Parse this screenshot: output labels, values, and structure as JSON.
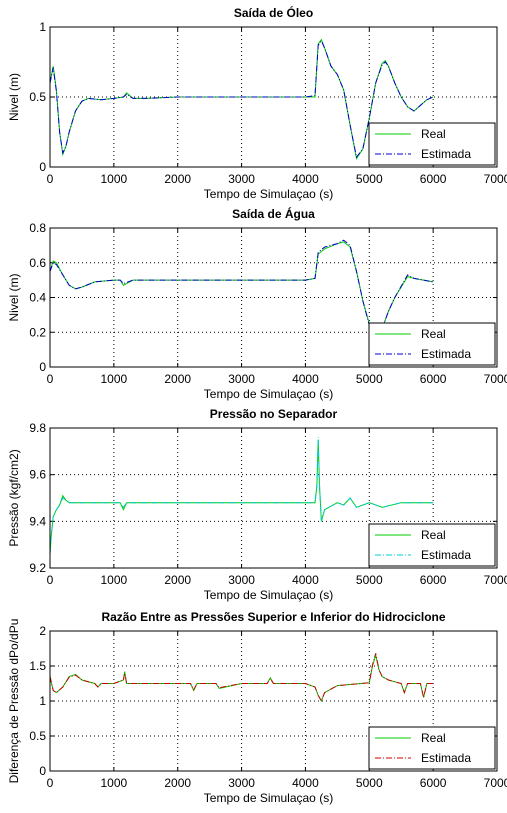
{
  "chart_data": [
    {
      "type": "line",
      "title": "Saída de Óleo",
      "xlabel": "Tempo de Simulaçao (s)",
      "ylabel": "Nivel (m)",
      "xlim": [
        0,
        7000
      ],
      "ylim": [
        0,
        1
      ],
      "xticks": [
        "0",
        "1000",
        "2000",
        "3000",
        "4000",
        "5000",
        "6000",
        "7000"
      ],
      "yticks": [
        "0",
        "0.5",
        "1"
      ],
      "ytick_values": [
        0,
        0.5,
        1
      ],
      "grid": "dotted",
      "legend_position": "bottom-right",
      "series": [
        {
          "name": "Real",
          "color": "#00cc00",
          "style": "solid",
          "x": [
            0,
            50,
            100,
            150,
            200,
            250,
            300,
            400,
            500,
            600,
            800,
            1000,
            1150,
            1200,
            1300,
            1500,
            2000,
            2500,
            3000,
            3500,
            4000,
            4150,
            4200,
            4250,
            4300,
            4400,
            4500,
            4600,
            4700,
            4800,
            4900,
            5000,
            5100,
            5200,
            5250,
            5300,
            5400,
            5500,
            5600,
            5700,
            5800,
            5900,
            6000
          ],
          "values": [
            0.6,
            0.72,
            0.55,
            0.25,
            0.09,
            0.15,
            0.25,
            0.4,
            0.47,
            0.49,
            0.48,
            0.49,
            0.5,
            0.53,
            0.49,
            0.49,
            0.5,
            0.5,
            0.5,
            0.5,
            0.5,
            0.5,
            0.88,
            0.91,
            0.85,
            0.72,
            0.66,
            0.55,
            0.3,
            0.06,
            0.13,
            0.35,
            0.6,
            0.74,
            0.76,
            0.72,
            0.6,
            0.5,
            0.43,
            0.4,
            0.44,
            0.48,
            0.5
          ]
        },
        {
          "name": "Estimada",
          "color": "#0000cc",
          "style": "dashdot",
          "x": [
            0,
            50,
            100,
            150,
            200,
            250,
            300,
            400,
            500,
            600,
            800,
            1000,
            1150,
            1200,
            1300,
            1500,
            2000,
            2500,
            3000,
            3500,
            4000,
            4150,
            4200,
            4250,
            4300,
            4400,
            4500,
            4600,
            4700,
            4800,
            4900,
            5000,
            5100,
            5200,
            5250,
            5300,
            5400,
            5500,
            5600,
            5700,
            5800,
            5900,
            6000
          ],
          "values": [
            0.6,
            0.71,
            0.54,
            0.25,
            0.1,
            0.15,
            0.25,
            0.4,
            0.47,
            0.49,
            0.48,
            0.49,
            0.5,
            0.52,
            0.49,
            0.49,
            0.5,
            0.5,
            0.5,
            0.5,
            0.5,
            0.51,
            0.87,
            0.9,
            0.85,
            0.72,
            0.66,
            0.55,
            0.3,
            0.07,
            0.13,
            0.35,
            0.6,
            0.73,
            0.75,
            0.72,
            0.6,
            0.5,
            0.43,
            0.4,
            0.44,
            0.48,
            0.5
          ]
        }
      ]
    },
    {
      "type": "line",
      "title": "Saída de Água",
      "xlabel": "Tempo de Simulaçao (s)",
      "ylabel": "Nivel (m)",
      "xlim": [
        0,
        7000
      ],
      "ylim": [
        0,
        0.8
      ],
      "xticks": [
        "0",
        "1000",
        "2000",
        "3000",
        "4000",
        "5000",
        "6000",
        "7000"
      ],
      "yticks": [
        "0",
        "0.2",
        "0.4",
        "0.6",
        "0.8"
      ],
      "ytick_values": [
        0,
        0.2,
        0.4,
        0.6,
        0.8
      ],
      "grid": "dotted",
      "legend_position": "bottom-right",
      "series": [
        {
          "name": "Real",
          "color": "#00cc00",
          "style": "solid",
          "x": [
            0,
            50,
            100,
            200,
            300,
            400,
            500,
            700,
            1000,
            1100,
            1150,
            1300,
            1500,
            2000,
            3000,
            3500,
            4000,
            4150,
            4200,
            4300,
            4500,
            4600,
            4700,
            4800,
            4900,
            5000,
            5100,
            5200,
            5300,
            5400,
            5600,
            5700,
            6000
          ],
          "values": [
            0.55,
            0.61,
            0.6,
            0.53,
            0.47,
            0.45,
            0.46,
            0.49,
            0.5,
            0.5,
            0.47,
            0.5,
            0.5,
            0.5,
            0.5,
            0.5,
            0.5,
            0.51,
            0.65,
            0.68,
            0.71,
            0.72,
            0.69,
            0.55,
            0.38,
            0.25,
            0.13,
            0.22,
            0.32,
            0.4,
            0.52,
            0.51,
            0.49
          ]
        },
        {
          "name": "Estimada",
          "color": "#0000cc",
          "style": "dashdot",
          "x": [
            0,
            50,
            100,
            200,
            300,
            400,
            500,
            700,
            1000,
            1100,
            1150,
            1300,
            1500,
            2000,
            3000,
            3500,
            4000,
            4150,
            4200,
            4300,
            4500,
            4600,
            4700,
            4800,
            4900,
            5000,
            5100,
            5200,
            5300,
            5400,
            5600,
            5700,
            6000
          ],
          "values": [
            0.55,
            0.6,
            0.59,
            0.53,
            0.47,
            0.45,
            0.46,
            0.49,
            0.5,
            0.5,
            0.48,
            0.5,
            0.5,
            0.5,
            0.5,
            0.5,
            0.5,
            0.51,
            0.66,
            0.69,
            0.71,
            0.73,
            0.7,
            0.55,
            0.38,
            0.24,
            0.12,
            0.22,
            0.32,
            0.4,
            0.53,
            0.51,
            0.49
          ]
        }
      ]
    },
    {
      "type": "line",
      "title": "Pressão no Separador",
      "xlabel": "Tempo de Simulaçao (s)",
      "ylabel": "Pressão (kgf/cm2)",
      "xlim": [
        0,
        7000
      ],
      "ylim": [
        9.2,
        9.8
      ],
      "xticks": [
        "0",
        "1000",
        "2000",
        "3000",
        "4000",
        "5000",
        "6000",
        "7000"
      ],
      "yticks": [
        "9.2",
        "9.4",
        "9.6",
        "9.8"
      ],
      "ytick_values": [
        9.2,
        9.4,
        9.6,
        9.8
      ],
      "grid": "dotted",
      "legend_position": "bottom-right",
      "series": [
        {
          "name": "Real",
          "color": "#00cc00",
          "style": "solid",
          "x": [
            0,
            20,
            50,
            100,
            150,
            200,
            250,
            300,
            500,
            1000,
            1100,
            1150,
            1200,
            1500,
            2000,
            2500,
            3000,
            3500,
            4000,
            4150,
            4180,
            4200,
            4220,
            4250,
            4300,
            4500,
            4600,
            4700,
            4800,
            5000,
            5200,
            5500,
            6000
          ],
          "values": [
            9.26,
            9.34,
            9.42,
            9.45,
            9.47,
            9.51,
            9.49,
            9.48,
            9.48,
            9.48,
            9.48,
            9.45,
            9.48,
            9.48,
            9.48,
            9.48,
            9.48,
            9.48,
            9.48,
            9.48,
            9.55,
            9.75,
            9.55,
            9.4,
            9.45,
            9.48,
            9.47,
            9.5,
            9.46,
            9.48,
            9.46,
            9.48,
            9.48
          ]
        },
        {
          "name": "Estimada",
          "color": "#00cccc",
          "style": "dashdot",
          "x": [
            0,
            20,
            50,
            100,
            150,
            200,
            250,
            300,
            500,
            1000,
            1100,
            1150,
            1200,
            1500,
            2000,
            2500,
            3000,
            3500,
            4000,
            4150,
            4180,
            4200,
            4220,
            4250,
            4300,
            4500,
            4600,
            4700,
            4800,
            5000,
            5200,
            5500,
            6000
          ],
          "values": [
            9.26,
            9.34,
            9.42,
            9.45,
            9.47,
            9.5,
            9.49,
            9.48,
            9.48,
            9.48,
            9.48,
            9.46,
            9.48,
            9.48,
            9.48,
            9.48,
            9.48,
            9.48,
            9.48,
            9.48,
            9.56,
            9.76,
            9.56,
            9.4,
            9.45,
            9.48,
            9.47,
            9.5,
            9.46,
            9.48,
            9.46,
            9.48,
            9.48
          ]
        }
      ]
    },
    {
      "type": "line",
      "title": "Razão Entre as Pressões Superior e Inferior do Hidrociclone",
      "xlabel": "Tempo de Simulaçao (s)",
      "ylabel": "Diferença de Pressão dPo/dPu",
      "xlim": [
        0,
        7000
      ],
      "ylim": [
        0,
        2
      ],
      "xticks": [
        "0",
        "1000",
        "2000",
        "3000",
        "4000",
        "5000",
        "6000",
        "7000"
      ],
      "yticks": [
        "0",
        "0.5",
        "1",
        "1.5",
        "2"
      ],
      "ytick_values": [
        0,
        0.5,
        1,
        1.5,
        2
      ],
      "grid": "dotted",
      "legend_position": "bottom-right",
      "series": [
        {
          "name": "Real",
          "color": "#00cc00",
          "style": "solid",
          "x": [
            0,
            50,
            100,
            200,
            300,
            400,
            500,
            700,
            750,
            800,
            1000,
            1150,
            1170,
            1200,
            1500,
            2000,
            2200,
            2250,
            2300,
            2600,
            2650,
            3000,
            3400,
            3450,
            3500,
            4000,
            4150,
            4200,
            4250,
            4300,
            4500,
            5000,
            5050,
            5100,
            5150,
            5200,
            5300,
            5500,
            5550,
            5600,
            5800,
            5850,
            5900,
            6000
          ],
          "values": [
            1.35,
            1.15,
            1.12,
            1.2,
            1.35,
            1.38,
            1.3,
            1.25,
            1.2,
            1.25,
            1.25,
            1.3,
            1.42,
            1.25,
            1.25,
            1.25,
            1.25,
            1.15,
            1.25,
            1.25,
            1.18,
            1.25,
            1.25,
            1.33,
            1.25,
            1.25,
            1.2,
            1.08,
            1.0,
            1.12,
            1.22,
            1.26,
            1.5,
            1.65,
            1.45,
            1.35,
            1.3,
            1.25,
            1.12,
            1.25,
            1.25,
            1.05,
            1.25,
            1.25
          ]
        },
        {
          "name": "Estimada",
          "color": "#cc0000",
          "style": "dashdot",
          "x": [
            0,
            50,
            100,
            200,
            300,
            400,
            500,
            700,
            750,
            800,
            1000,
            1150,
            1170,
            1200,
            1500,
            2000,
            2200,
            2250,
            2300,
            2600,
            2650,
            3000,
            3400,
            3450,
            3500,
            4000,
            4150,
            4200,
            4250,
            4300,
            4500,
            5000,
            5050,
            5100,
            5150,
            5200,
            5300,
            5500,
            5550,
            5600,
            5800,
            5850,
            5900,
            6000
          ],
          "values": [
            1.35,
            1.15,
            1.12,
            1.2,
            1.34,
            1.37,
            1.3,
            1.25,
            1.2,
            1.25,
            1.25,
            1.3,
            1.4,
            1.25,
            1.25,
            1.25,
            1.25,
            1.16,
            1.25,
            1.25,
            1.19,
            1.25,
            1.25,
            1.32,
            1.25,
            1.25,
            1.2,
            1.08,
            1.0,
            1.12,
            1.22,
            1.26,
            1.52,
            1.68,
            1.45,
            1.35,
            1.3,
            1.25,
            1.12,
            1.25,
            1.25,
            1.05,
            1.25,
            1.25
          ]
        }
      ]
    }
  ]
}
